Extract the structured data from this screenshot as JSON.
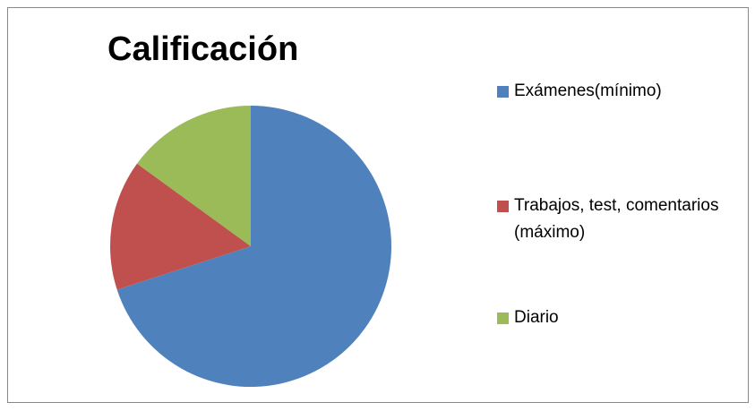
{
  "chart_data": {
    "type": "pie",
    "title": "Calificación",
    "categories": [
      "Exámenes(mínimo)",
      "Trabajos, test, comentarios (máximo)",
      "Diario"
    ],
    "values": [
      70,
      15,
      15
    ],
    "colors": [
      "#4f81bd",
      "#c0504d",
      "#9bbb59"
    ],
    "legend": "right"
  }
}
